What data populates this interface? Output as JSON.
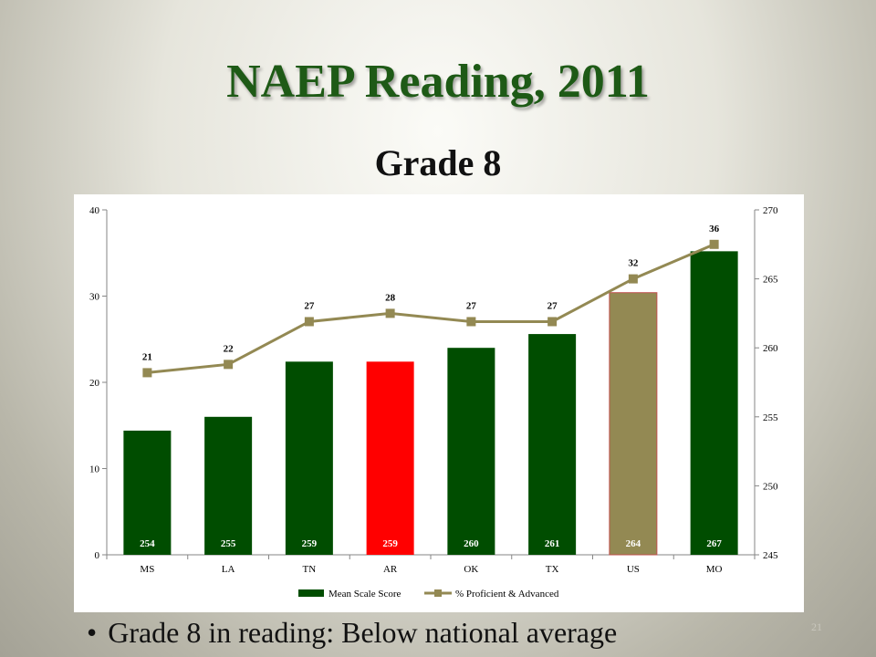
{
  "slide": {
    "title": "NAEP Reading, 2011",
    "subtitle": "Grade 8",
    "bullet": "Grade 8 in reading: Below national average",
    "page_number": "21"
  },
  "chart_data": {
    "type": "bar",
    "categories": [
      "MS",
      "LA",
      "TN",
      "AR",
      "OK",
      "TX",
      "US",
      "MO"
    ],
    "series": [
      {
        "name": "Mean Scale Score",
        "type": "bar",
        "axis": "right",
        "values": [
          254,
          255,
          259,
          259,
          260,
          261,
          264,
          267
        ],
        "colors": [
          "#004d00",
          "#004d00",
          "#004d00",
          "#ff0000",
          "#004d00",
          "#004d00",
          "#938953",
          "#004d00"
        ]
      },
      {
        "name": "% Proficient & Advanced",
        "type": "line",
        "axis": "right",
        "values": [
          21,
          22,
          27,
          28,
          27,
          27,
          32,
          36
        ],
        "plot_values": [
          258.2,
          258.8,
          261.9,
          262.5,
          261.9,
          261.9,
          265.0,
          267.5
        ],
        "color": "#938953"
      }
    ],
    "left_axis": {
      "range": [
        0,
        40
      ],
      "ticks": [
        "0",
        "10",
        "20",
        "30",
        "40"
      ]
    },
    "right_axis": {
      "range": [
        245,
        270
      ],
      "ticks": [
        "245",
        "250",
        "255",
        "260",
        "265",
        "270"
      ]
    },
    "legend_position": "bottom",
    "grid": false
  }
}
